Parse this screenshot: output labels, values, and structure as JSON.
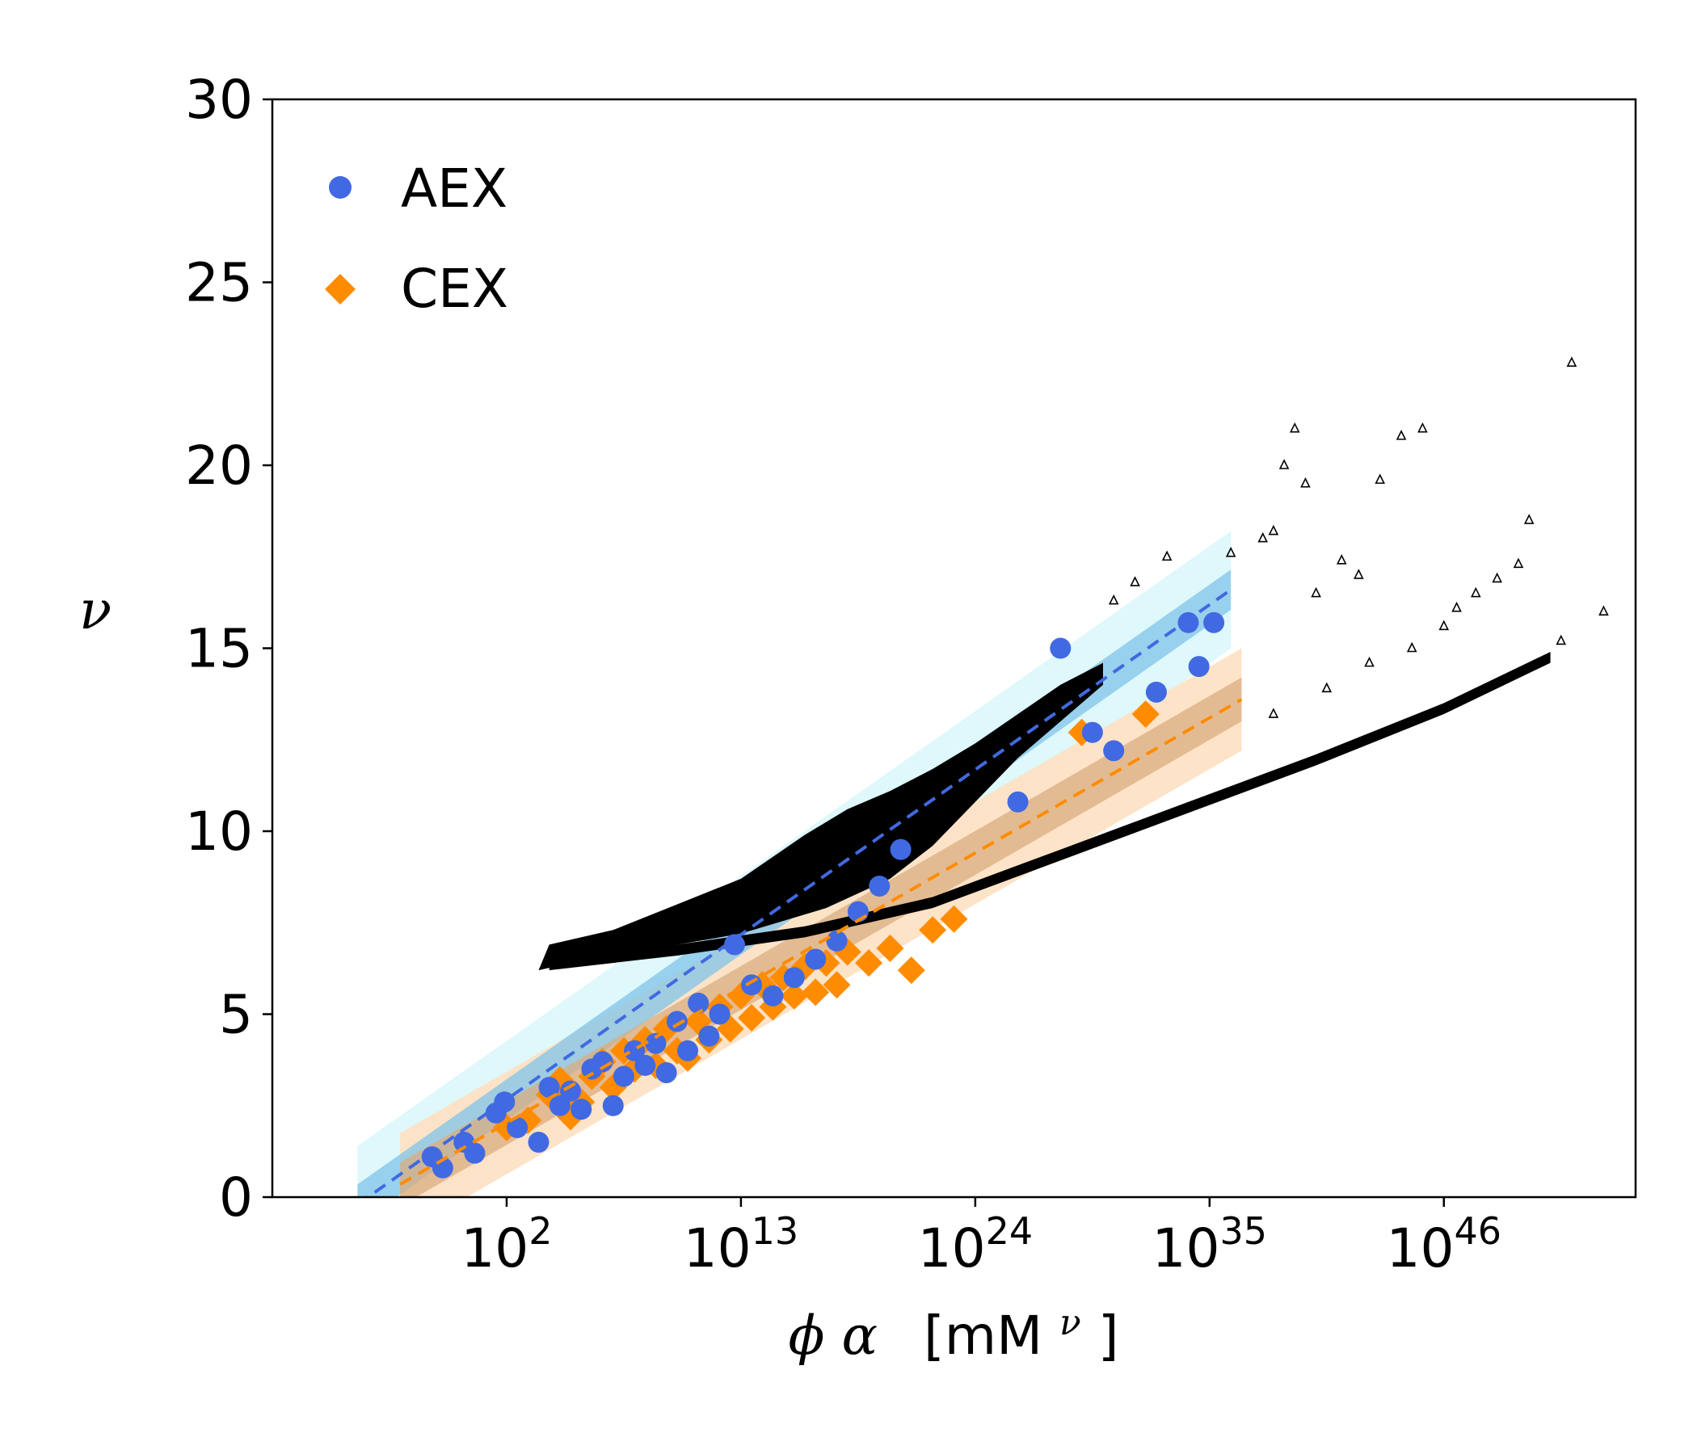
{
  "chart_data": {
    "type": "scatter",
    "title": "",
    "xlabel_symbols": "ϕ α",
    "xlabel_unit": "[mM",
    "xlabel_unit_exp": "ν",
    "xlabel_unit_close": "]",
    "ylabel": "ν",
    "x_scale": "log",
    "xlim_log10": [
      -9,
      55
    ],
    "ylim": [
      0,
      30
    ],
    "yticks": [
      0,
      5,
      10,
      15,
      20,
      25,
      30
    ],
    "xticks": [
      {
        "log10": 2,
        "base": "10",
        "exp": "2"
      },
      {
        "log10": 13,
        "base": "10",
        "exp": "13"
      },
      {
        "log10": 24,
        "base": "10",
        "exp": "24"
      },
      {
        "log10": 35,
        "base": "10",
        "exp": "35"
      },
      {
        "log10": 46,
        "base": "10",
        "exp": "46"
      }
    ],
    "legend": {
      "placement": "top-left",
      "entries": [
        {
          "label": "AEX",
          "marker": "circle",
          "color": "#4169e1"
        },
        {
          "label": "CEX",
          "marker": "diamond",
          "color": "#ff8c00"
        }
      ]
    },
    "colors": {
      "aex": "#4169e1",
      "cex": "#ff8c00",
      "aex_band_outer": "#dcf8fb",
      "aex_band_inner": "#80c4e8",
      "cex_band_outer": "#fde2c4",
      "cex_band_inner": "#d9ae82",
      "simulated": "#000000"
    },
    "series": [
      {
        "name": "AEX",
        "marker": "circle",
        "color": "#4169e1",
        "points": [
          [
            -1.5,
            1.1
          ],
          [
            -1.0,
            0.8
          ],
          [
            0.0,
            1.5
          ],
          [
            0.5,
            1.2
          ],
          [
            1.5,
            2.3
          ],
          [
            1.9,
            2.6
          ],
          [
            2.5,
            1.9
          ],
          [
            3.5,
            1.5
          ],
          [
            4.0,
            3.0
          ],
          [
            4.5,
            2.5
          ],
          [
            5.0,
            2.9
          ],
          [
            5.5,
            2.4
          ],
          [
            6.0,
            3.5
          ],
          [
            6.5,
            3.7
          ],
          [
            7.0,
            2.5
          ],
          [
            7.5,
            3.3
          ],
          [
            8.0,
            4.0
          ],
          [
            8.5,
            3.6
          ],
          [
            9.0,
            4.2
          ],
          [
            9.5,
            3.4
          ],
          [
            10.0,
            4.8
          ],
          [
            10.5,
            4.0
          ],
          [
            11.0,
            5.3
          ],
          [
            11.5,
            4.4
          ],
          [
            12.0,
            5.0
          ],
          [
            12.7,
            6.9
          ],
          [
            13.5,
            5.8
          ],
          [
            14.5,
            5.5
          ],
          [
            15.5,
            6.0
          ],
          [
            16.5,
            6.5
          ],
          [
            17.5,
            7.0
          ],
          [
            18.5,
            7.8
          ],
          [
            19.5,
            8.5
          ],
          [
            20.5,
            9.5
          ],
          [
            26.0,
            10.8
          ],
          [
            28.0,
            15.0
          ],
          [
            29.5,
            12.7
          ],
          [
            30.5,
            12.2
          ],
          [
            32.5,
            13.8
          ],
          [
            34.0,
            15.7
          ],
          [
            34.5,
            14.5
          ],
          [
            35.2,
            15.7
          ]
        ]
      },
      {
        "name": "CEX",
        "marker": "diamond",
        "color": "#ff8c00",
        "points": [
          [
            2.0,
            1.9
          ],
          [
            3.0,
            2.1
          ],
          [
            4.0,
            2.8
          ],
          [
            4.5,
            3.2
          ],
          [
            5.0,
            2.2
          ],
          [
            5.5,
            2.6
          ],
          [
            6.0,
            3.3
          ],
          [
            6.5,
            3.7
          ],
          [
            7.0,
            3.0
          ],
          [
            7.5,
            4.0
          ],
          [
            8.0,
            3.5
          ],
          [
            8.5,
            4.3
          ],
          [
            9.0,
            3.6
          ],
          [
            9.5,
            4.6
          ],
          [
            10.0,
            4.0
          ],
          [
            10.5,
            3.8
          ],
          [
            11.0,
            4.8
          ],
          [
            11.5,
            4.3
          ],
          [
            12.0,
            5.2
          ],
          [
            12.5,
            4.6
          ],
          [
            13.0,
            5.5
          ],
          [
            13.5,
            4.9
          ],
          [
            14.0,
            5.8
          ],
          [
            14.5,
            5.2
          ],
          [
            15.0,
            6.0
          ],
          [
            15.5,
            5.5
          ],
          [
            16.0,
            6.3
          ],
          [
            16.5,
            5.6
          ],
          [
            17.0,
            6.4
          ],
          [
            17.5,
            5.8
          ],
          [
            18.0,
            6.7
          ],
          [
            19.0,
            6.4
          ],
          [
            20.0,
            6.8
          ],
          [
            21.0,
            6.2
          ],
          [
            22.0,
            7.3
          ],
          [
            23.0,
            7.6
          ],
          [
            29.0,
            12.7
          ],
          [
            32.0,
            13.2
          ]
        ]
      },
      {
        "name": "",
        "marker": "triangle",
        "color": "#000000",
        "points": [
          [
            46.6,
            16.1
          ],
          [
            47.5,
            16.5
          ],
          [
            48.5,
            16.9
          ],
          [
            49.5,
            17.3
          ],
          [
            50.0,
            18.5
          ],
          [
            52.0,
            22.8
          ],
          [
            51.5,
            15.2
          ],
          [
            53.5,
            16.0
          ],
          [
            40.0,
            16.5
          ],
          [
            41.2,
            17.4
          ],
          [
            42.0,
            17.0
          ],
          [
            43.0,
            19.6
          ],
          [
            44.0,
            20.8
          ],
          [
            45.0,
            21.0
          ],
          [
            36.0,
            17.6
          ],
          [
            37.5,
            18.0
          ],
          [
            38.0,
            18.2
          ],
          [
            33.0,
            17.5
          ],
          [
            31.5,
            16.8
          ],
          [
            30.5,
            16.3
          ],
          [
            38.5,
            20.0
          ],
          [
            39.5,
            19.5
          ],
          [
            39.0,
            21.0
          ],
          [
            42.5,
            14.6
          ],
          [
            44.5,
            15.0
          ],
          [
            46.0,
            15.6
          ],
          [
            40.5,
            13.9
          ],
          [
            38.0,
            13.2
          ]
        ]
      }
    ],
    "fits": [
      {
        "series": "AEX",
        "x_log10": [
          -5,
          36
        ],
        "y": [
          -0.2,
          16.6
        ],
        "inner_half_width": 0.55,
        "outer_half_width": 1.6
      },
      {
        "series": "CEX",
        "x_log10": [
          -3,
          36.5
        ],
        "y": [
          0.35,
          13.6
        ],
        "inner_half_width": 0.6,
        "outer_half_width": 1.4
      }
    ]
  }
}
